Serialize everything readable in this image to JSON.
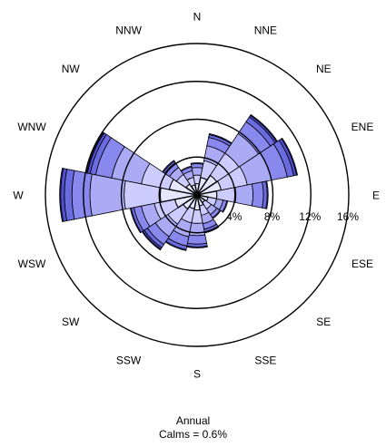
{
  "chart_data": {
    "type": "wind-rose",
    "directions": [
      "N",
      "NNE",
      "NE",
      "ENE",
      "E",
      "ESE",
      "SE",
      "SSE",
      "S",
      "SSW",
      "SW",
      "WSW",
      "W",
      "WNW",
      "NW",
      "NNW"
    ],
    "ring_values": [
      4,
      8,
      12,
      16
    ],
    "ring_labels": [
      "4%",
      "8%",
      "12%",
      "16%"
    ],
    "rmax": 16,
    "bin_colors": [
      "#e6e6ff",
      "#ccccff",
      "#aaaaf5",
      "#8888ee",
      "#6b6be0",
      "#4f4fd0",
      "#3838b0"
    ],
    "frequencies": [
      [
        1.2,
        0.9,
        0.8,
        0.4,
        0.1,
        0.0,
        0.0
      ],
      [
        1.9,
        1.8,
        1.6,
        0.9,
        0.3,
        0.1,
        0.0
      ],
      [
        2.5,
        2.8,
        2.5,
        1.5,
        0.6,
        0.2,
        0.1
      ],
      [
        2.6,
        2.8,
        2.6,
        1.7,
        0.7,
        0.3,
        0.1
      ],
      [
        2.1,
        2.0,
        1.8,
        1.1,
        0.4,
        0.1,
        0.0
      ],
      [
        1.2,
        0.9,
        0.7,
        0.4,
        0.1,
        0.0,
        0.0
      ],
      [
        1.0,
        0.8,
        0.7,
        0.4,
        0.1,
        0.0,
        0.0
      ],
      [
        1.2,
        1.0,
        0.9,
        0.6,
        0.3,
        0.1,
        0.0
      ],
      [
        1.6,
        1.4,
        1.3,
        0.9,
        0.3,
        0.1,
        0.0
      ],
      [
        1.5,
        1.5,
        1.5,
        1.0,
        0.4,
        0.1,
        0.0
      ],
      [
        1.8,
        1.9,
        1.6,
        1.0,
        0.4,
        0.2,
        0.1
      ],
      [
        2.4,
        2.2,
        1.4,
        0.8,
        0.3,
        0.1,
        0.0
      ],
      [
        3.9,
        3.8,
        3.6,
        1.9,
        0.8,
        0.4,
        0.1
      ],
      [
        3.0,
        3.0,
        3.2,
        1.7,
        0.6,
        0.3,
        0.1
      ],
      [
        1.4,
        1.2,
        0.9,
        0.6,
        0.2,
        0.1,
        0.0
      ],
      [
        1.1,
        0.8,
        0.7,
        0.4,
        0.1,
        0.0,
        0.0
      ]
    ],
    "calms_percent": 0.6,
    "caption_line1": "Annual",
    "caption_line2": "Calms = 0.6%"
  }
}
